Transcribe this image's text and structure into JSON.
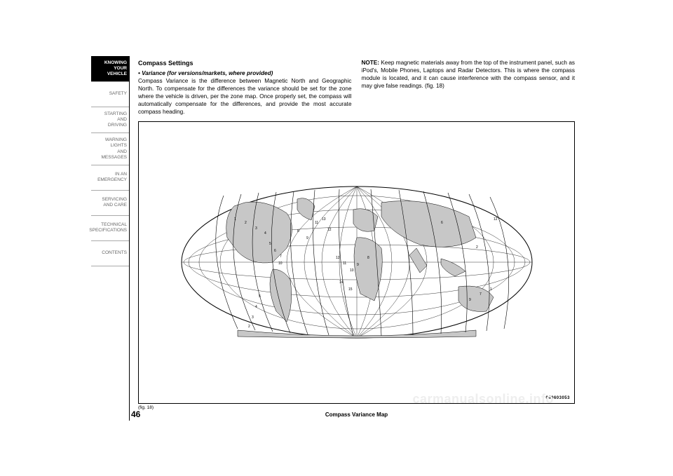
{
  "sidebar": {
    "tabs": [
      "KNOWING\nYOUR\nVEHICLE",
      "SAFETY",
      "STARTING\nAND\nDRIVING",
      "WARNING\nLIGHTS\nAND\nMESSAGES",
      "IN AN\nEMERGENCY",
      "SERVICING\nAND CARE",
      "TECHNICAL\nSPECIFICATIONS",
      "CONTENTS"
    ],
    "active_index": 0
  },
  "content": {
    "heading": "Compass Settings",
    "bullet_label": "• Variance (for versions/markets, where provided)",
    "left_body": "Compass Variance is the difference between Magnetic North and Geographic North. To compensate for the differences the variance should be set for the zone where the vehicle is driven, per the zone map. Once properly set, the compass will automatically compensate for the differences, and provide the most accurate compass heading.",
    "note_label": "NOTE:",
    "right_body": " Keep magnetic materials away from the top of the instrument panel, such as iPod's, Mobile Phones, Laptops and Radar Detectors. This is where the compass module is located, and it can cause interference with the compass sensor, and it may give false readings. (fig. 18)"
  },
  "figure": {
    "ref": "(fig. 18)",
    "caption": "Compass Variance Map",
    "id": "040603053",
    "zones": [
      "1",
      "2",
      "3",
      "4",
      "5",
      "6",
      "7",
      "8",
      "9",
      "10",
      "11",
      "12",
      "13",
      "14",
      "15"
    ]
  },
  "page_number": "46",
  "watermark": "carmanualsonline.info",
  "colors": {
    "land": "#c7c7c7",
    "ocean": "#ffffff",
    "line": "#000000",
    "tab_inactive_text": "#666666",
    "tab_active_bg": "#000000",
    "tab_active_text": "#ffffff",
    "watermark": "#eeeeee"
  }
}
